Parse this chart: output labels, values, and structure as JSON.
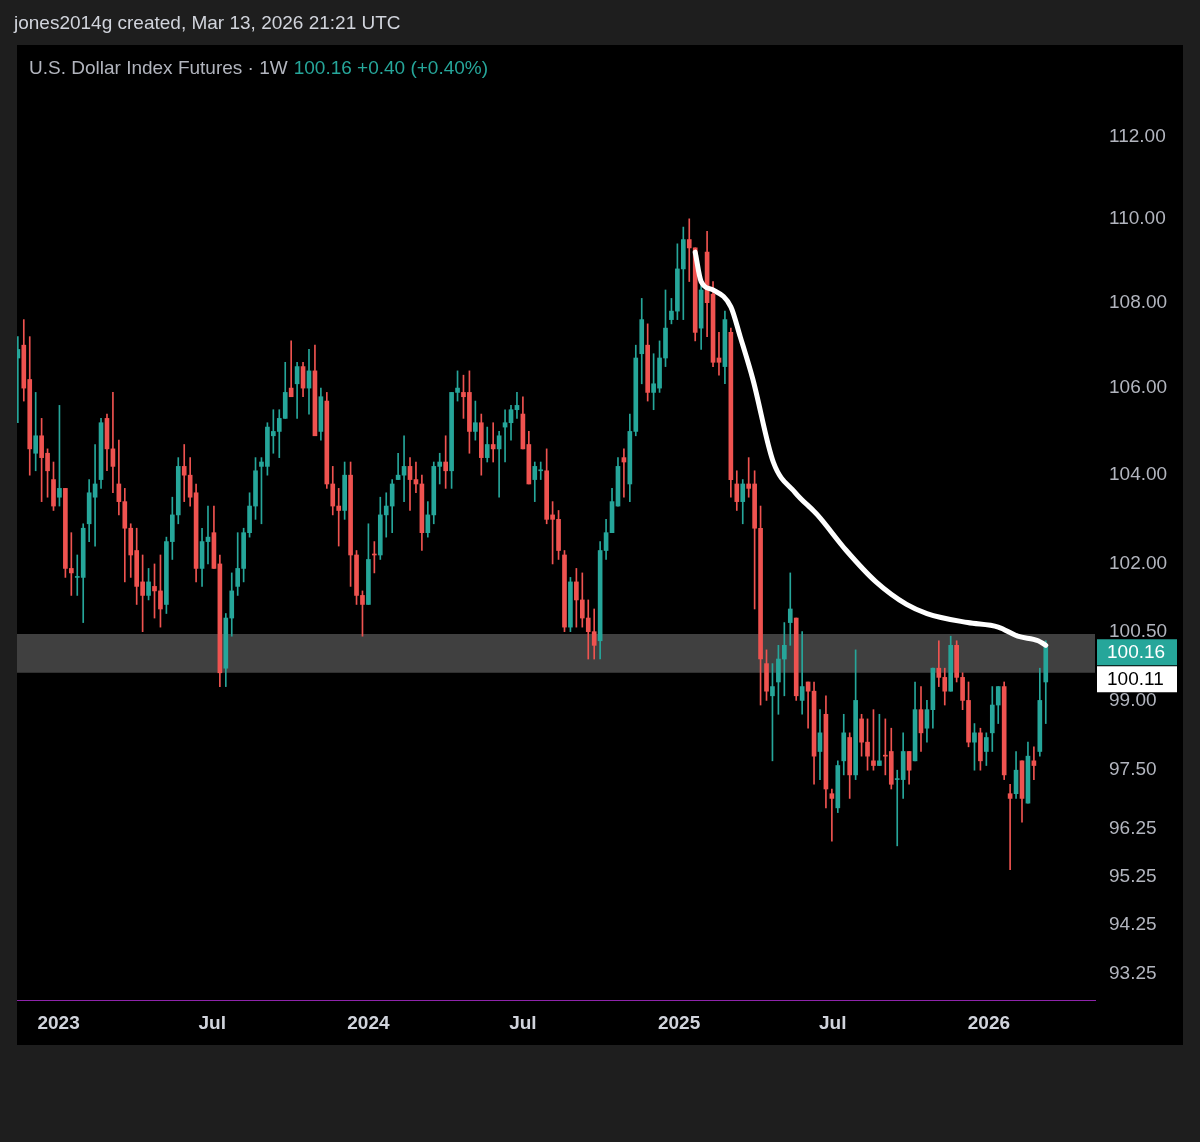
{
  "chart_data": {
    "type": "candlestick",
    "title": "U.S. Dollar Index Futures · 1W",
    "subtitle": "100.16  +0.40 (+0.40%)",
    "log": true,
    "ylim": [
      92.72,
      112
    ],
    "yticks": [
      {
        "value": 112,
        "label": "112.00"
      },
      {
        "value": 110,
        "label": "110.00"
      },
      {
        "value": 108,
        "label": "108.00"
      },
      {
        "value": 106,
        "label": "106.00"
      },
      {
        "value": 104,
        "label": "104.00"
      },
      {
        "value": 102,
        "label": "102.00"
      },
      {
        "value": 100.5,
        "label": "100.50"
      },
      {
        "value": 99,
        "label": "99.00"
      },
      {
        "value": 97.5,
        "label": "97.50"
      },
      {
        "value": 96.25,
        "label": "96.25"
      },
      {
        "value": 95.25,
        "label": "95.25"
      },
      {
        "value": 94.25,
        "label": "94.25"
      },
      {
        "value": 93.25,
        "label": "93.25"
      }
    ],
    "xlim": [
      "2022-11-13",
      "2026-05-06"
    ],
    "xticks": [
      {
        "value": "2023-01-01",
        "label": "2023"
      },
      {
        "value": "2023-07-01",
        "label": "Jul"
      },
      {
        "value": "2024-01-01",
        "label": "2024"
      },
      {
        "value": "2024-07-01",
        "label": "Jul"
      },
      {
        "value": "2025-01-01",
        "label": "2025"
      },
      {
        "value": "2025-07-01",
        "label": "Jul"
      },
      {
        "value": "2026-01-01",
        "label": "2026"
      }
    ],
    "bands": [
      {
        "axis": "y",
        "from": 99.6,
        "to": 100.45,
        "color": "#404040"
      }
    ],
    "annotations": [
      "jones2014g created, Mar 13, 2026 21:21 UTC",
      "100.16",
      "100.11"
    ],
    "series": [
      {
        "x": [
          "2022-11-14",
          "2022-11-21",
          "2022-11-28",
          "2022-12-05",
          "2022-12-12",
          "2022-12-19",
          "2022-12-26",
          "2023-01-02",
          "2023-01-09",
          "2023-01-16",
          "2023-01-23",
          "2023-01-30",
          "2023-02-06",
          "2023-02-13",
          "2023-02-20",
          "2023-02-27",
          "2023-03-06",
          "2023-03-13",
          "2023-03-20",
          "2023-03-27",
          "2023-04-03",
          "2023-04-10",
          "2023-04-17",
          "2023-04-24",
          "2023-05-01",
          "2023-05-08",
          "2023-05-15",
          "2023-05-22",
          "2023-05-29",
          "2023-06-05",
          "2023-06-12",
          "2023-06-19",
          "2023-06-26",
          "2023-07-03",
          "2023-07-10",
          "2023-07-17",
          "2023-07-24",
          "2023-07-31",
          "2023-08-07",
          "2023-08-14",
          "2023-08-21",
          "2023-08-28",
          "2023-09-04",
          "2023-09-11",
          "2023-09-18",
          "2023-09-25",
          "2023-10-02",
          "2023-10-09",
          "2023-10-16",
          "2023-10-23",
          "2023-10-30",
          "2023-11-06",
          "2023-11-13",
          "2023-11-20",
          "2023-11-27",
          "2023-12-04",
          "2023-12-11",
          "2023-12-18",
          "2023-12-25",
          "2024-01-01",
          "2024-01-08",
          "2024-01-15",
          "2024-01-22",
          "2024-01-29",
          "2024-02-05",
          "2024-02-12",
          "2024-02-19",
          "2024-02-26",
          "2024-03-04",
          "2024-03-11",
          "2024-03-18",
          "2024-03-25",
          "2024-04-01",
          "2024-04-08",
          "2024-04-15",
          "2024-04-22",
          "2024-04-29",
          "2024-05-06",
          "2024-05-13",
          "2024-05-20",
          "2024-05-27",
          "2024-06-03",
          "2024-06-10",
          "2024-06-17",
          "2024-06-24",
          "2024-07-01",
          "2024-07-08",
          "2024-07-15",
          "2024-07-22",
          "2024-07-29",
          "2024-08-05",
          "2024-08-12",
          "2024-08-19",
          "2024-08-26",
          "2024-09-02",
          "2024-09-09",
          "2024-09-16",
          "2024-09-23",
          "2024-09-30",
          "2024-10-07",
          "2024-10-14",
          "2024-10-21",
          "2024-10-28",
          "2024-11-04",
          "2024-11-11",
          "2024-11-18",
          "2024-11-25",
          "2024-12-02",
          "2024-12-09",
          "2024-12-16",
          "2024-12-23",
          "2024-12-30",
          "2025-01-06",
          "2025-01-13",
          "2025-01-20",
          "2025-01-27",
          "2025-02-03",
          "2025-02-10",
          "2025-02-17",
          "2025-02-24",
          "2025-03-03",
          "2025-03-10",
          "2025-03-17",
          "2025-03-24",
          "2025-03-31",
          "2025-04-07",
          "2025-04-14",
          "2025-04-21",
          "2025-04-28",
          "2025-05-05",
          "2025-05-12",
          "2025-05-19",
          "2025-05-26",
          "2025-06-02",
          "2025-06-09",
          "2025-06-16",
          "2025-06-23",
          "2025-06-30",
          "2025-07-07",
          "2025-07-14",
          "2025-07-21",
          "2025-07-28",
          "2025-08-04",
          "2025-08-11",
          "2025-08-18",
          "2025-08-25",
          "2025-09-01",
          "2025-09-08",
          "2025-09-15",
          "2025-09-22",
          "2025-09-29",
          "2025-10-06",
          "2025-10-13",
          "2025-10-20",
          "2025-10-27",
          "2025-11-03",
          "2025-11-10",
          "2025-11-17",
          "2025-11-24",
          "2025-12-01",
          "2025-12-08",
          "2025-12-15",
          "2025-12-22",
          "2025-12-29",
          "2026-01-05",
          "2026-01-12",
          "2026-01-19",
          "2026-01-26",
          "2026-02-02",
          "2026-02-09",
          "2026-02-16",
          "2026-02-23",
          "2026-03-02",
          "2026-03-09"
        ],
        "ohlc": [
          [
            106.7,
            107.2,
            105.2,
            106.9
          ],
          [
            107.0,
            107.6,
            105.7,
            106.0
          ],
          [
            106.2,
            107.2,
            104.0,
            104.6
          ],
          [
            104.5,
            105.9,
            104.1,
            104.9
          ],
          [
            104.9,
            105.3,
            103.4,
            104.4
          ],
          [
            104.5,
            104.6,
            103.5,
            104.1
          ],
          [
            103.9,
            104.3,
            103.2,
            103.3
          ],
          [
            103.5,
            105.6,
            103.3,
            103.7
          ],
          [
            103.7,
            103.7,
            101.7,
            101.9
          ],
          [
            101.9,
            102.7,
            101.3,
            101.8
          ],
          [
            101.7,
            102.2,
            101.3,
            101.7
          ],
          [
            101.7,
            102.9,
            100.7,
            102.8
          ],
          [
            102.9,
            103.9,
            102.5,
            103.6
          ],
          [
            103.5,
            104.7,
            102.4,
            103.8
          ],
          [
            103.9,
            105.3,
            103.7,
            105.2
          ],
          [
            105.3,
            105.4,
            104.1,
            104.6
          ],
          [
            104.6,
            105.9,
            103.6,
            104.2
          ],
          [
            103.8,
            104.8,
            103.1,
            103.4
          ],
          [
            103.4,
            103.7,
            101.6,
            102.8
          ],
          [
            102.8,
            102.9,
            101.7,
            102.2
          ],
          [
            102.3,
            102.8,
            101.1,
            101.5
          ],
          [
            101.6,
            102.2,
            100.5,
            101.3
          ],
          [
            101.3,
            101.9,
            101.2,
            101.6
          ],
          [
            101.5,
            102.0,
            100.8,
            101.4
          ],
          [
            101.4,
            102.2,
            100.6,
            101.0
          ],
          [
            101.1,
            102.6,
            100.9,
            102.5
          ],
          [
            102.5,
            103.5,
            102.1,
            103.1
          ],
          [
            103.1,
            104.4,
            102.9,
            104.2
          ],
          [
            104.2,
            104.7,
            103.4,
            104.0
          ],
          [
            104.0,
            104.4,
            103.3,
            103.5
          ],
          [
            103.6,
            103.8,
            101.6,
            101.9
          ],
          [
            101.9,
            102.8,
            101.5,
            102.5
          ],
          [
            102.5,
            103.3,
            102.0,
            102.6
          ],
          [
            102.7,
            103.3,
            101.9,
            101.9
          ],
          [
            102.0,
            102.2,
            99.3,
            99.6
          ],
          [
            99.7,
            100.9,
            99.3,
            100.8
          ],
          [
            100.8,
            101.8,
            100.4,
            101.4
          ],
          [
            101.5,
            102.7,
            101.3,
            101.9
          ],
          [
            101.9,
            102.8,
            101.6,
            102.7
          ],
          [
            102.7,
            103.6,
            102.6,
            103.3
          ],
          [
            103.3,
            104.4,
            103.0,
            104.1
          ],
          [
            104.2,
            104.4,
            102.9,
            104.3
          ],
          [
            104.2,
            105.2,
            104.0,
            105.1
          ],
          [
            104.9,
            105.5,
            104.5,
            105.0
          ],
          [
            105.0,
            105.5,
            104.4,
            105.3
          ],
          [
            105.3,
            106.6,
            105.3,
            105.9
          ],
          [
            106.0,
            107.1,
            105.8,
            105.8
          ],
          [
            106.1,
            106.6,
            105.3,
            106.5
          ],
          [
            106.5,
            106.6,
            105.8,
            106.0
          ],
          [
            106.0,
            106.9,
            105.4,
            106.4
          ],
          [
            106.4,
            107.0,
            104.9,
            104.9
          ],
          [
            105.0,
            106.0,
            104.8,
            105.8
          ],
          [
            105.7,
            105.9,
            103.7,
            103.8
          ],
          [
            103.8,
            104.2,
            103.1,
            103.3
          ],
          [
            103.3,
            103.7,
            102.4,
            103.2
          ],
          [
            103.2,
            104.3,
            103.0,
            104.0
          ],
          [
            104.0,
            104.3,
            101.5,
            102.2
          ],
          [
            102.2,
            102.3,
            101.1,
            101.3
          ],
          [
            101.3,
            101.4,
            100.4,
            101.1
          ],
          [
            101.1,
            102.9,
            101.1,
            102.1
          ],
          [
            102.2,
            102.5,
            101.8,
            102.2
          ],
          [
            102.2,
            103.5,
            102.1,
            103.1
          ],
          [
            103.1,
            103.6,
            102.6,
            103.3
          ],
          [
            103.3,
            103.9,
            102.7,
            103.8
          ],
          [
            103.9,
            104.5,
            103.9,
            104.0
          ],
          [
            104.0,
            104.9,
            103.4,
            104.2
          ],
          [
            104.2,
            104.4,
            103.2,
            103.9
          ],
          [
            103.9,
            104.3,
            103.6,
            103.8
          ],
          [
            103.8,
            104.0,
            102.3,
            102.7
          ],
          [
            102.7,
            103.4,
            102.6,
            103.1
          ],
          [
            103.1,
            104.3,
            102.9,
            104.2
          ],
          [
            104.2,
            104.5,
            103.8,
            104.3
          ],
          [
            104.3,
            104.9,
            103.7,
            104.1
          ],
          [
            104.1,
            105.9,
            103.7,
            105.9
          ],
          [
            105.9,
            106.4,
            105.7,
            106.0
          ],
          [
            105.9,
            106.3,
            105.3,
            105.8
          ],
          [
            105.9,
            106.4,
            104.5,
            105.0
          ],
          [
            105.0,
            105.7,
            104.8,
            105.2
          ],
          [
            105.2,
            105.4,
            104.0,
            104.4
          ],
          [
            104.4,
            105.1,
            104.3,
            104.7
          ],
          [
            104.7,
            105.2,
            104.3,
            104.6
          ],
          [
            104.6,
            105.0,
            103.5,
            104.9
          ],
          [
            105.1,
            105.5,
            104.3,
            105.2
          ],
          [
            105.2,
            105.6,
            104.8,
            105.5
          ],
          [
            105.5,
            105.9,
            105.3,
            105.6
          ],
          [
            105.4,
            105.8,
            104.6,
            104.6
          ],
          [
            104.7,
            105.0,
            103.8,
            103.8
          ],
          [
            103.9,
            104.3,
            103.4,
            104.2
          ],
          [
            104.1,
            104.3,
            103.9,
            104.1
          ],
          [
            104.1,
            104.6,
            102.9,
            103.0
          ],
          [
            103.1,
            103.4,
            102.0,
            103.0
          ],
          [
            103.0,
            103.2,
            102.1,
            102.3
          ],
          [
            102.2,
            102.3,
            100.5,
            100.6
          ],
          [
            100.6,
            101.7,
            100.5,
            101.6
          ],
          [
            101.6,
            101.9,
            100.6,
            101.2
          ],
          [
            101.2,
            101.8,
            100.6,
            100.8
          ],
          [
            100.8,
            101.2,
            99.9,
            100.5
          ],
          [
            100.5,
            101.0,
            99.9,
            100.2
          ],
          [
            100.3,
            102.5,
            99.9,
            102.3
          ],
          [
            102.3,
            103.0,
            102.1,
            102.7
          ],
          [
            102.7,
            103.7,
            102.7,
            103.4
          ],
          [
            103.3,
            104.4,
            103.3,
            104.2
          ],
          [
            104.4,
            104.6,
            103.5,
            104.3
          ],
          [
            103.8,
            105.4,
            103.4,
            105.0
          ],
          [
            105.0,
            107.0,
            104.9,
            106.7
          ],
          [
            106.8,
            108.1,
            106.1,
            107.6
          ],
          [
            107.0,
            107.5,
            105.7,
            105.9
          ],
          [
            105.9,
            106.8,
            105.5,
            106.1
          ],
          [
            106.0,
            107.1,
            105.9,
            106.7
          ],
          [
            106.7,
            108.3,
            106.5,
            107.4
          ],
          [
            107.6,
            108.1,
            107.5,
            107.8
          ],
          [
            107.8,
            109.4,
            107.6,
            108.8
          ],
          [
            108.8,
            109.8,
            107.6,
            109.5
          ],
          [
            109.5,
            110.0,
            108.5,
            109.3
          ],
          [
            109.3,
            109.3,
            107.1,
            107.3
          ],
          [
            107.4,
            108.4,
            106.9,
            108.3
          ],
          [
            109.2,
            109.7,
            107.2,
            108.0
          ],
          [
            108.2,
            108.5,
            106.5,
            106.6
          ],
          [
            106.7,
            107.3,
            106.3,
            106.6
          ],
          [
            106.5,
            107.8,
            106.1,
            107.6
          ],
          [
            107.3,
            107.4,
            103.5,
            103.9
          ],
          [
            103.8,
            104.1,
            103.2,
            103.4
          ],
          [
            103.4,
            103.9,
            102.9,
            103.8
          ],
          [
            103.8,
            104.4,
            103.5,
            103.7
          ],
          [
            103.8,
            104.1,
            101.0,
            102.8
          ],
          [
            102.8,
            103.3,
            98.9,
            99.9
          ],
          [
            99.8,
            100.1,
            99.0,
            99.2
          ],
          [
            99.1,
            99.8,
            97.7,
            99.3
          ],
          [
            99.4,
            100.2,
            98.7,
            99.9
          ],
          [
            99.9,
            100.7,
            99.1,
            100.2
          ],
          [
            100.7,
            101.8,
            100.2,
            101.0
          ],
          [
            100.8,
            100.8,
            99.0,
            99.1
          ],
          [
            99.0,
            100.5,
            98.7,
            99.3
          ],
          [
            99.4,
            99.4,
            98.4,
            99.2
          ],
          [
            99.2,
            99.4,
            97.2,
            97.8
          ],
          [
            97.9,
            98.8,
            97.3,
            98.3
          ],
          [
            98.7,
            99.1,
            96.7,
            97.1
          ],
          [
            97.0,
            97.1,
            96.0,
            96.9
          ],
          [
            96.7,
            97.7,
            96.6,
            97.6
          ],
          [
            97.7,
            98.7,
            97.4,
            98.3
          ],
          [
            98.2,
            98.3,
            96.9,
            97.4
          ],
          [
            97.4,
            100.1,
            97.3,
            99.0
          ],
          [
            98.6,
            98.7,
            97.8,
            98.1
          ],
          [
            98.1,
            98.6,
            97.5,
            97.8
          ],
          [
            97.7,
            98.8,
            97.5,
            97.6
          ],
          [
            97.6,
            98.7,
            97.6,
            97.7
          ],
          [
            97.8,
            98.6,
            97.4,
            97.8
          ],
          [
            97.9,
            98.4,
            97.1,
            97.2
          ],
          [
            97.3,
            97.5,
            95.9,
            97.3
          ],
          [
            97.3,
            98.3,
            96.9,
            97.9
          ],
          [
            97.9,
            97.9,
            97.2,
            97.5
          ],
          [
            97.7,
            99.4,
            97.7,
            98.8
          ],
          [
            98.8,
            99.3,
            97.9,
            98.3
          ],
          [
            98.4,
            99.0,
            98.1,
            98.8
          ],
          [
            98.8,
            99.7,
            98.4,
            99.7
          ],
          [
            99.7,
            100.3,
            99.3,
            99.5
          ],
          [
            99.5,
            99.7,
            98.9,
            99.2
          ],
          [
            99.2,
            100.4,
            99.2,
            100.2
          ],
          [
            100.2,
            100.3,
            99.4,
            99.5
          ],
          [
            99.5,
            99.6,
            98.8,
            99.0
          ],
          [
            99.0,
            99.4,
            98.0,
            98.1
          ],
          [
            98.1,
            98.5,
            97.5,
            98.3
          ],
          [
            98.3,
            98.4,
            97.5,
            97.7
          ],
          [
            97.9,
            98.3,
            97.6,
            98.2
          ],
          [
            98.3,
            99.3,
            97.9,
            98.9
          ],
          [
            98.9,
            99.3,
            98.5,
            99.3
          ],
          [
            99.3,
            99.4,
            97.3,
            97.4
          ],
          [
            97.0,
            97.2,
            95.4,
            96.9
          ],
          [
            97.0,
            97.9,
            96.9,
            97.5
          ],
          [
            97.7,
            97.7,
            96.4,
            96.9
          ],
          [
            96.8,
            98.1,
            96.8,
            97.8
          ],
          [
            97.7,
            98.0,
            97.3,
            97.6
          ],
          [
            97.9,
            99.7,
            97.8,
            99.0
          ],
          [
            99.4,
            100.3,
            98.5,
            100.16
          ]
        ],
        "colors": [
          "#26a69a",
          "#ef5350",
          "#ef5350",
          "#26a69a",
          "#ef5350",
          "#ef5350",
          "#ef5350",
          "#26a69a",
          "#ef5350",
          "#ef5350",
          "#26a69a",
          "#26a69a",
          "#26a69a",
          "#26a69a",
          "#26a69a",
          "#ef5350",
          "#ef5350",
          "#ef5350",
          "#ef5350",
          "#ef5350",
          "#ef5350",
          "#ef5350",
          "#26a69a",
          "#ef5350",
          "#ef5350",
          "#26a69a",
          "#26a69a",
          "#26a69a",
          "#ef5350",
          "#ef5350",
          "#ef5350",
          "#26a69a",
          "#26a69a",
          "#ef5350",
          "#ef5350",
          "#26a69a",
          "#26a69a",
          "#26a69a",
          "#26a69a",
          "#26a69a",
          "#26a69a",
          "#26a69a",
          "#26a69a",
          "#26a69a",
          "#26a69a",
          "#26a69a",
          "#ef5350",
          "#26a69a",
          "#ef5350",
          "#26a69a",
          "#ef5350",
          "#26a69a",
          "#ef5350",
          "#ef5350",
          "#ef5350",
          "#26a69a",
          "#ef5350",
          "#ef5350",
          "#ef5350",
          "#26a69a",
          "#ef5350",
          "#26a69a",
          "#26a69a",
          "#26a69a",
          "#26a69a",
          "#26a69a",
          "#ef5350",
          "#ef5350",
          "#ef5350",
          "#26a69a",
          "#26a69a",
          "#26a69a",
          "#ef5350",
          "#26a69a",
          "#26a69a",
          "#ef5350",
          "#ef5350",
          "#26a69a",
          "#ef5350",
          "#26a69a",
          "#ef5350",
          "#26a69a",
          "#26a69a",
          "#26a69a",
          "#26a69a",
          "#ef5350",
          "#ef5350",
          "#26a69a",
          "#26a69a",
          "#ef5350",
          "#ef5350",
          "#ef5350",
          "#ef5350",
          "#26a69a",
          "#ef5350",
          "#ef5350",
          "#ef5350",
          "#ef5350",
          "#26a69a",
          "#26a69a",
          "#26a69a",
          "#26a69a",
          "#ef5350",
          "#26a69a",
          "#26a69a",
          "#26a69a",
          "#ef5350",
          "#26a69a",
          "#26a69a",
          "#26a69a",
          "#26a69a",
          "#26a69a",
          "#26a69a",
          "#ef5350",
          "#ef5350",
          "#26a69a",
          "#ef5350",
          "#ef5350",
          "#ef5350",
          "#26a69a",
          "#ef5350",
          "#ef5350",
          "#26a69a",
          "#ef5350",
          "#ef5350",
          "#ef5350",
          "#ef5350",
          "#26a69a",
          "#26a69a",
          "#26a69a",
          "#26a69a",
          "#ef5350",
          "#26a69a",
          "#ef5350",
          "#ef5350",
          "#26a69a",
          "#ef5350",
          "#ef5350",
          "#26a69a",
          "#26a69a",
          "#ef5350",
          "#26a69a",
          "#ef5350",
          "#ef5350",
          "#ef5350",
          "#26a69a",
          "#ef5350",
          "#ef5350",
          "#26a69a",
          "#26a69a",
          "#ef5350",
          "#26a69a",
          "#ef5350",
          "#26a69a",
          "#26a69a",
          "#ef5350",
          "#ef5350",
          "#26a69a",
          "#ef5350",
          "#ef5350",
          "#ef5350",
          "#26a69a",
          "#ef5350",
          "#26a69a",
          "#26a69a",
          "#26a69a",
          "#ef5350",
          "#ef5350",
          "#26a69a",
          "#ef5350",
          "#26a69a",
          "#ef5350",
          "#26a69a",
          "#26a69a"
        ]
      },
      {
        "type": "line",
        "color": "#ffffff",
        "x": [
          "2025-01-20",
          "2025-01-27",
          "2025-02-10",
          "2025-03-03",
          "2025-03-14",
          "2025-03-29",
          "2025-04-22",
          "2025-05-18",
          "2025-06-13",
          "2025-07-17",
          "2025-08-21",
          "2025-09-26",
          "2025-10-20",
          "2025-12-07",
          "2026-01-12",
          "2026-02-04",
          "2026-02-28",
          "2026-03-09"
        ],
        "values": [
          109.2,
          108.5,
          108.3,
          107.9,
          107.2,
          106.2,
          104.3,
          103.6,
          103.1,
          102.3,
          101.6,
          101.1,
          100.9,
          100.7,
          100.6,
          100.4,
          100.3,
          100.2
        ]
      }
    ]
  }
}
